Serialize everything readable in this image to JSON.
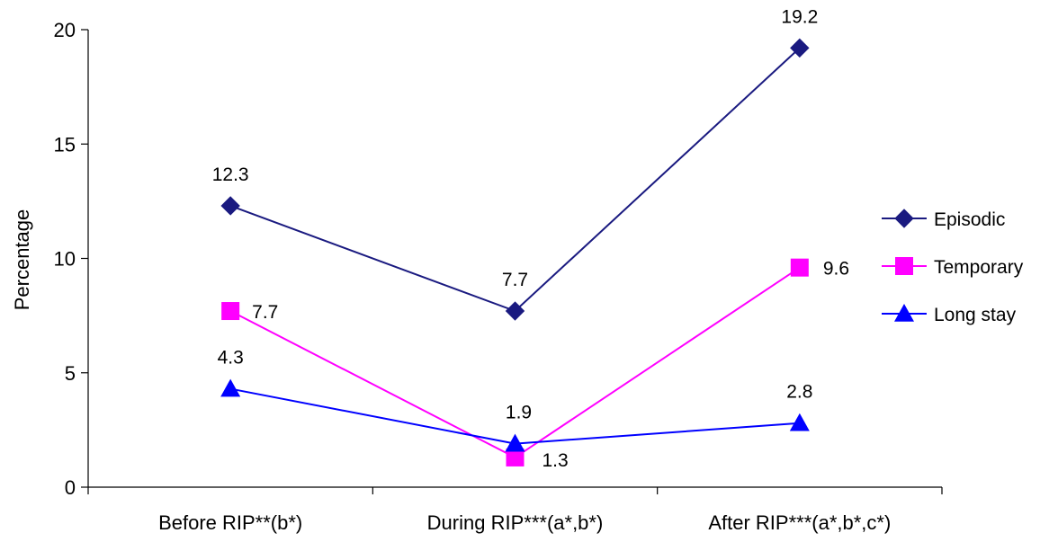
{
  "chart_data": {
    "type": "line",
    "categories": [
      "Before RIP**(b*)",
      "During RIP***(a*,b*)",
      "After RIP***(a*,b*,c*)"
    ],
    "series": [
      {
        "name": "Episodic",
        "values": [
          12.3,
          7.7,
          19.2
        ],
        "labels": [
          "12.3",
          "7.7",
          "19.2"
        ],
        "color": "#1a1a80",
        "marker": "diamond"
      },
      {
        "name": "Temporary",
        "values": [
          7.7,
          1.3,
          9.6
        ],
        "labels": [
          "7.7",
          "1.3",
          "9.6"
        ],
        "color": "#ff00ff",
        "marker": "square"
      },
      {
        "name": "Long stay",
        "values": [
          4.3,
          1.9,
          2.8
        ],
        "labels": [
          "4.3",
          "1.9",
          "2.8"
        ],
        "color": "#0000ff",
        "marker": "triangle"
      }
    ],
    "title": "",
    "xlabel": "",
    "ylabel": "Percentage",
    "ylim": [
      0,
      20
    ],
    "yticks": [
      "0",
      "5",
      "10",
      "15",
      "20"
    ],
    "grid": false,
    "legend_position": "right"
  }
}
